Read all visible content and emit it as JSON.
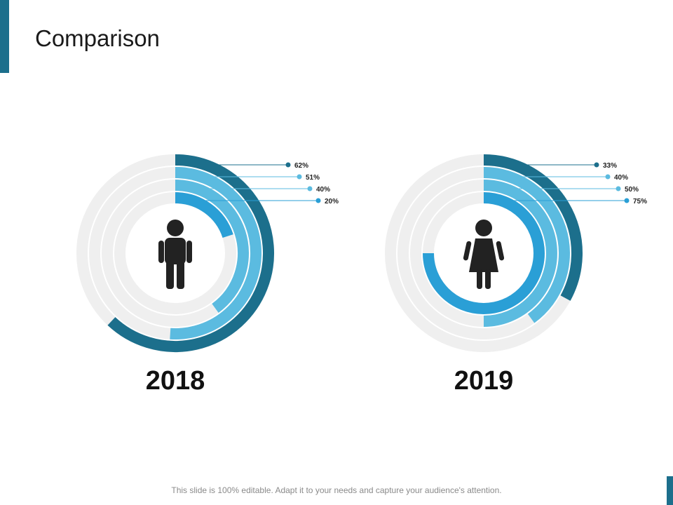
{
  "title": "Comparison",
  "footer_text": "This slide is 100% editable. Adapt it to your needs and capture your audience's attention.",
  "colors": {
    "accent": "#1c6f8c",
    "track": "#efefef",
    "dark_blue": "#1c6f8c",
    "light_blue": "#5bbbe0",
    "mid_blue": "#2a9fd6",
    "figure": "#222222"
  },
  "chart_data": [
    {
      "type": "radial-bar",
      "label": "2018",
      "icon": "male-person-icon",
      "rings": [
        {
          "value": 62,
          "label": "62%",
          "color": "#1c6f8c"
        },
        {
          "value": 51,
          "label": "51%",
          "color": "#5bbbe0"
        },
        {
          "value": 40,
          "label": "40%",
          "color": "#5bbbe0"
        },
        {
          "value": 20,
          "label": "20%",
          "color": "#2a9fd6"
        }
      ]
    },
    {
      "type": "radial-bar",
      "label": "2019",
      "icon": "female-person-icon",
      "rings": [
        {
          "value": 33,
          "label": "33%",
          "color": "#1c6f8c"
        },
        {
          "value": 40,
          "label": "40%",
          "color": "#5bbbe0"
        },
        {
          "value": 50,
          "label": "50%",
          "color": "#5bbbe0"
        },
        {
          "value": 75,
          "label": "75%",
          "color": "#2a9fd6"
        }
      ]
    }
  ]
}
